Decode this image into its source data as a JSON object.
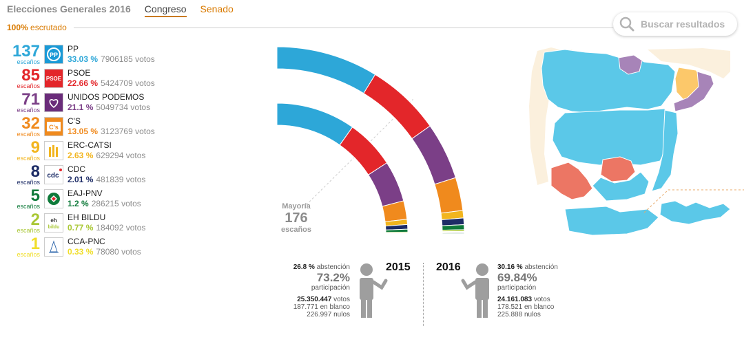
{
  "header": {
    "title": "Elecciones Generales 2016",
    "tabs": [
      "Congreso",
      "Senado"
    ],
    "scrutiny_pct": "100%",
    "scrutiny_label": "escrutado"
  },
  "search": {
    "placeholder": "Buscar resultados"
  },
  "seats_label": "escaños",
  "votes_label": "votos",
  "parties": [
    {
      "name": "PP",
      "seats": "137",
      "pct": "33.03 %",
      "votes": "7906185",
      "color": "#2da7d8",
      "logo": "PP"
    },
    {
      "name": "PSOE",
      "seats": "85",
      "pct": "22.66 %",
      "votes": "5424709",
      "color": "#e3262a",
      "logo": "PSOE"
    },
    {
      "name": "UNIDOS PODEMOS",
      "seats": "71",
      "pct": "21.1 %",
      "votes": "5049734",
      "color": "#7b3f87",
      "logo": "heart"
    },
    {
      "name": "C'S",
      "seats": "32",
      "pct": "13.05 %",
      "votes": "3123769",
      "color": "#f08a1d",
      "logo": "C's"
    },
    {
      "name": "ERC-CATSI",
      "seats": "9",
      "pct": "2.63 %",
      "votes": "629294",
      "color": "#f2b51e",
      "logo": "erc"
    },
    {
      "name": "CDC",
      "seats": "8",
      "pct": "2.01 %",
      "votes": "481839",
      "color": "#1d2c66",
      "logo": "cdc"
    },
    {
      "name": "EAJ-PNV",
      "seats": "5",
      "pct": "1.2 %",
      "votes": "286215",
      "color": "#0f7a3a",
      "logo": "pnv"
    },
    {
      "name": "EH BILDU",
      "seats": "2",
      "pct": "0.77 %",
      "votes": "184092",
      "color": "#a9c734",
      "logo": "eh bildu"
    },
    {
      "name": "CCA-PNC",
      "seats": "1",
      "pct": "0.33 %",
      "votes": "78080",
      "color": "#f0de2a",
      "logo": "cca"
    }
  ],
  "majority": {
    "label": "Mayoría",
    "value": "176",
    "unit": "escaños"
  },
  "chart_data": {
    "type": "hemicycle",
    "total_seats": 350,
    "majority": 176,
    "series": [
      {
        "name": "2016",
        "values": [
          137,
          85,
          71,
          32,
          9,
          8,
          5,
          2,
          1
        ],
        "colors": [
          "#2da7d8",
          "#e3262a",
          "#7b3f87",
          "#f08a1d",
          "#f2b51e",
          "#1d2c66",
          "#0f7a3a",
          "#a9c734",
          "#f0de2a"
        ]
      },
      {
        "name": "2015",
        "values": [
          123,
          90,
          69,
          40,
          9,
          8,
          6,
          2,
          1,
          1,
          1
        ],
        "colors": [
          "#2da7d8",
          "#e3262a",
          "#7b3f87",
          "#f08a1d",
          "#f2b51e",
          "#1d2c66",
          "#0f7a3a",
          "#a9c734",
          "#f0de2a",
          "#1d2c66",
          "#0f7a3a"
        ]
      }
    ]
  },
  "map_colors": {
    "pp": "#5bc8e8",
    "psoe": "#ec7664",
    "podemos": "#a784b8",
    "erc": "#fcc86a",
    "other": "#fbf0dd"
  },
  "participation": [
    {
      "year": "2015",
      "abstention": "26.8 %",
      "abstention_label": "abstención",
      "participation": "73.2%",
      "participation_label": "participación",
      "votes": "25.350.447",
      "votes_label": "votos",
      "blank": "187.771",
      "blank_label": "en blanco",
      "null": "226.997",
      "null_label": "nulos"
    },
    {
      "year": "2016",
      "abstention": "30.16 %",
      "abstention_label": "abstención",
      "participation": "69.84%",
      "participation_label": "participación",
      "votes": "24.161.083",
      "votes_label": "votos",
      "blank": "178.521",
      "blank_label": "en blanco",
      "null": "225.888",
      "null_label": "nulos"
    }
  ]
}
